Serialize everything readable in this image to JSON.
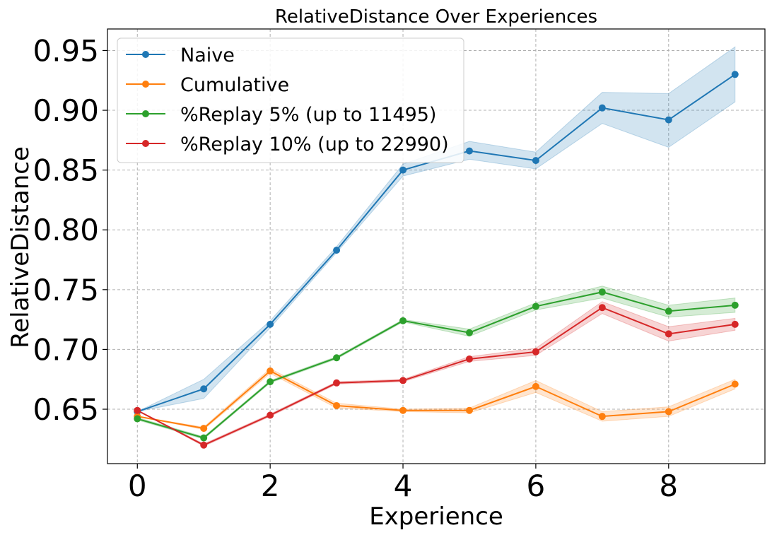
{
  "chart_data": {
    "type": "line",
    "title": "RelativeDistance Over Experiences",
    "xlabel": "Experience",
    "ylabel": "RelativeDistance",
    "xlim": [
      -0.45,
      9.45
    ],
    "ylim": [
      0.6045,
      0.968
    ],
    "xticks": [
      0,
      2,
      4,
      6,
      8
    ],
    "xtick_labels": [
      "0",
      "2",
      "4",
      "6",
      "8"
    ],
    "yticks": [
      0.65,
      0.7,
      0.75,
      0.8,
      0.85,
      0.9,
      0.95
    ],
    "ytick_labels": [
      "0.65",
      "0.70",
      "0.75",
      "0.80",
      "0.85",
      "0.90",
      "0.95"
    ],
    "grid": true,
    "legend_position": "top-left",
    "x": [
      0,
      1,
      2,
      3,
      4,
      5,
      6,
      7,
      8,
      9
    ],
    "series": [
      {
        "name": "Naive",
        "color": "#1f77b4",
        "values": [
          0.648,
          0.667,
          0.721,
          0.783,
          0.85,
          0.866,
          0.858,
          0.902,
          0.892,
          0.93
        ],
        "lower": [
          0.648,
          0.659,
          0.718,
          0.781,
          0.845,
          0.859,
          0.851,
          0.889,
          0.869,
          0.907
        ],
        "upper": [
          0.648,
          0.675,
          0.724,
          0.786,
          0.855,
          0.874,
          0.865,
          0.915,
          0.914,
          0.953
        ]
      },
      {
        "name": "Cumulative",
        "color": "#ff7f0e",
        "values": [
          0.644,
          0.634,
          0.682,
          0.653,
          0.649,
          0.649,
          0.669,
          0.644,
          0.648,
          0.671
        ],
        "lower": [
          0.644,
          0.633,
          0.68,
          0.651,
          0.648,
          0.647,
          0.664,
          0.64,
          0.644,
          0.667
        ],
        "upper": [
          0.644,
          0.635,
          0.684,
          0.655,
          0.65,
          0.651,
          0.674,
          0.648,
          0.652,
          0.675
        ]
      },
      {
        "name": "%Replay 5% (up to 11495)",
        "color": "#2ca02c",
        "values": [
          0.642,
          0.626,
          0.673,
          0.693,
          0.724,
          0.714,
          0.736,
          0.748,
          0.732,
          0.737
        ],
        "lower": [
          0.641,
          0.625,
          0.672,
          0.692,
          0.723,
          0.711,
          0.733,
          0.743,
          0.727,
          0.731
        ],
        "upper": [
          0.643,
          0.627,
          0.674,
          0.694,
          0.725,
          0.717,
          0.739,
          0.753,
          0.737,
          0.743
        ]
      },
      {
        "name": "%Replay 10% (up to 22990)",
        "color": "#d62728",
        "values": [
          0.649,
          0.62,
          0.645,
          0.672,
          0.674,
          0.692,
          0.698,
          0.735,
          0.713,
          0.721
        ],
        "lower": [
          0.649,
          0.619,
          0.644,
          0.671,
          0.673,
          0.69,
          0.695,
          0.73,
          0.707,
          0.716
        ],
        "upper": [
          0.649,
          0.621,
          0.646,
          0.673,
          0.675,
          0.694,
          0.701,
          0.74,
          0.719,
          0.726
        ]
      }
    ]
  }
}
